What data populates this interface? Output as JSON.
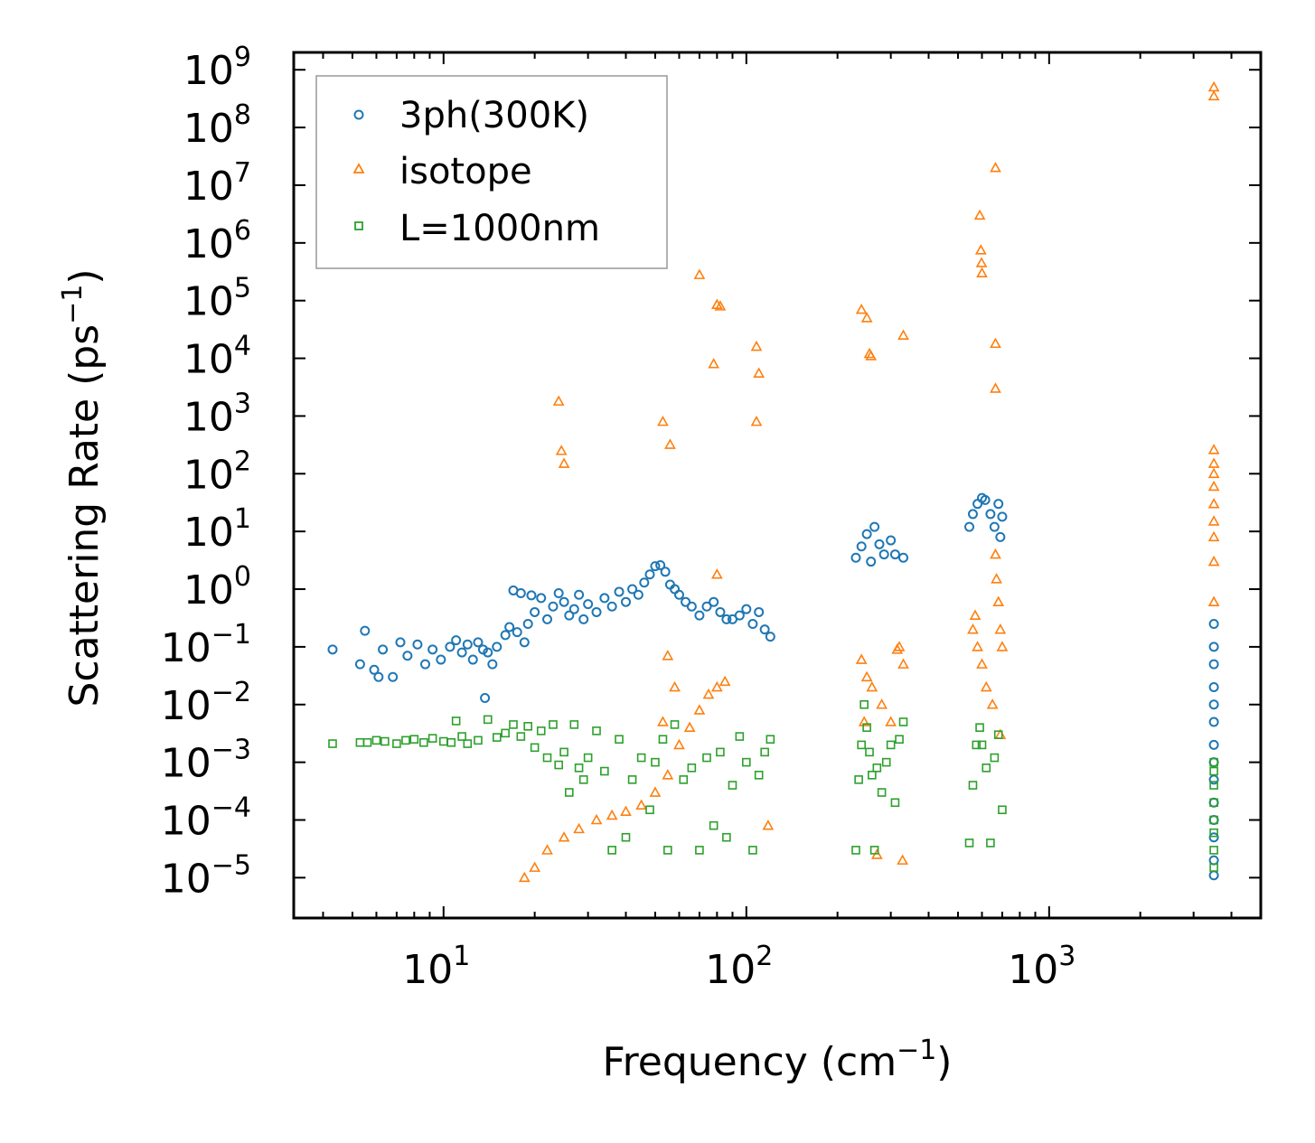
{
  "chart_data": {
    "type": "scatter",
    "xlabel": "Frequency",
    "xlabel_unit": "(cm",
    "xlabel_sup": "−1",
    "xlabel_close": ")",
    "ylabel": "Scattering Rate",
    "ylabel_unit": "(ps",
    "ylabel_sup": "−1",
    "ylabel_close": ")",
    "x_scale": "log",
    "y_scale": "log",
    "xlim": [
      3.2,
      5000
    ],
    "ylim": [
      2e-06,
      2000000000.0
    ],
    "x_ticks": [
      {
        "value": 10,
        "base": "10",
        "exp": "1"
      },
      {
        "value": 100,
        "base": "10",
        "exp": "2"
      },
      {
        "value": 1000,
        "base": "10",
        "exp": "3"
      }
    ],
    "y_ticks": [
      {
        "value": 1e-05,
        "base": "10",
        "exp": "−5"
      },
      {
        "value": 0.0001,
        "base": "10",
        "exp": "−4"
      },
      {
        "value": 0.001,
        "base": "10",
        "exp": "−3"
      },
      {
        "value": 0.01,
        "base": "10",
        "exp": "−2"
      },
      {
        "value": 0.1,
        "base": "10",
        "exp": "−1"
      },
      {
        "value": 1,
        "base": "10",
        "exp": "0"
      },
      {
        "value": 10,
        "base": "10",
        "exp": "1"
      },
      {
        "value": 100,
        "base": "10",
        "exp": "2"
      },
      {
        "value": 1000,
        "base": "10",
        "exp": "3"
      },
      {
        "value": 10000,
        "base": "10",
        "exp": "4"
      },
      {
        "value": 100000,
        "base": "10",
        "exp": "5"
      },
      {
        "value": 1000000,
        "base": "10",
        "exp": "6"
      },
      {
        "value": 10000000,
        "base": "10",
        "exp": "7"
      },
      {
        "value": 100000000,
        "base": "10",
        "exp": "8"
      },
      {
        "value": 1000000000,
        "base": "10",
        "exp": "9"
      }
    ],
    "legend_position": "top-left",
    "series": [
      {
        "name": "3ph(300K)",
        "marker": "circle",
        "color": "#1f77b4",
        "points": [
          [
            4.3,
            0.09
          ],
          [
            5.3,
            0.05
          ],
          [
            5.5,
            0.19
          ],
          [
            5.9,
            0.04
          ],
          [
            6.1,
            0.03
          ],
          [
            6.3,
            0.09
          ],
          [
            6.8,
            0.03
          ],
          [
            7.2,
            0.12
          ],
          [
            7.6,
            0.07
          ],
          [
            8.2,
            0.11
          ],
          [
            8.7,
            0.05
          ],
          [
            9.2,
            0.09
          ],
          [
            9.8,
            0.06
          ],
          [
            10.5,
            0.1
          ],
          [
            11,
            0.13
          ],
          [
            11.5,
            0.08
          ],
          [
            12,
            0.11
          ],
          [
            12.5,
            0.06
          ],
          [
            13,
            0.12
          ],
          [
            13.5,
            0.09
          ],
          [
            14,
            0.08
          ],
          [
            14.5,
            0.05
          ],
          [
            15,
            0.1
          ],
          [
            13.7,
            0.013
          ],
          [
            16,
            0.16
          ],
          [
            16.5,
            0.22
          ],
          [
            17,
            0.95
          ],
          [
            17.5,
            0.18
          ],
          [
            18,
            0.85
          ],
          [
            18.5,
            0.12
          ],
          [
            19,
            0.25
          ],
          [
            19.5,
            0.78
          ],
          [
            20,
            0.4
          ],
          [
            21,
            0.7
          ],
          [
            22,
            0.3
          ],
          [
            23,
            0.5
          ],
          [
            24,
            0.85
          ],
          [
            25,
            0.6
          ],
          [
            26,
            0.35
          ],
          [
            27,
            0.45
          ],
          [
            28,
            0.8
          ],
          [
            29,
            0.3
          ],
          [
            30,
            0.55
          ],
          [
            32,
            0.4
          ],
          [
            34,
            0.7
          ],
          [
            36,
            0.5
          ],
          [
            38,
            0.9
          ],
          [
            40,
            0.6
          ],
          [
            42,
            1.0
          ],
          [
            44,
            0.8
          ],
          [
            46,
            1.3
          ],
          [
            48,
            1.8
          ],
          [
            50,
            2.5
          ],
          [
            52,
            2.6
          ],
          [
            54,
            2.0
          ],
          [
            56,
            1.2
          ],
          [
            58,
            1.0
          ],
          [
            60,
            0.8
          ],
          [
            63,
            0.6
          ],
          [
            66,
            0.5
          ],
          [
            70,
            0.35
          ],
          [
            74,
            0.5
          ],
          [
            78,
            0.6
          ],
          [
            82,
            0.4
          ],
          [
            86,
            0.3
          ],
          [
            90,
            0.3
          ],
          [
            95,
            0.35
          ],
          [
            100,
            0.45
          ],
          [
            105,
            0.25
          ],
          [
            110,
            0.4
          ],
          [
            115,
            0.2
          ],
          [
            120,
            0.15
          ],
          [
            230,
            3.5
          ],
          [
            240,
            5.5
          ],
          [
            250,
            9.0
          ],
          [
            258,
            3.0
          ],
          [
            265,
            12.0
          ],
          [
            275,
            6.0
          ],
          [
            285,
            4.0
          ],
          [
            300,
            7.0
          ],
          [
            310,
            4.0
          ],
          [
            330,
            3.5
          ],
          [
            545,
            12.0
          ],
          [
            560,
            20.0
          ],
          [
            580,
            30.0
          ],
          [
            600,
            38.0
          ],
          [
            615,
            35.0
          ],
          [
            640,
            20.0
          ],
          [
            660,
            12.0
          ],
          [
            680,
            30.0
          ],
          [
            690,
            8.0
          ],
          [
            700,
            18.0
          ],
          [
            3500,
            0.25
          ],
          [
            3500,
            0.1
          ],
          [
            3500,
            0.05
          ],
          [
            3500,
            0.02
          ],
          [
            3500,
            0.01
          ],
          [
            3500,
            0.005
          ],
          [
            3500,
            0.002
          ],
          [
            3500,
            0.001
          ],
          [
            3500,
            0.0005
          ],
          [
            3500,
            0.0002
          ],
          [
            3500,
            0.0001
          ],
          [
            3500,
            5e-05
          ],
          [
            3500,
            2e-05
          ],
          [
            3500,
            1.1e-05
          ]
        ]
      },
      {
        "name": "isotope",
        "marker": "triangle",
        "color": "#ff7f0e",
        "points": [
          [
            24,
            1800
          ],
          [
            24.5,
            250
          ],
          [
            25,
            150
          ],
          [
            53,
            800
          ],
          [
            55,
            0.07
          ],
          [
            56,
            320
          ],
          [
            58,
            0.02
          ],
          [
            53,
            0.005
          ],
          [
            70,
            280000
          ],
          [
            78,
            8000
          ],
          [
            80,
            85000
          ],
          [
            82,
            80000
          ],
          [
            80,
            1.8
          ],
          [
            108,
            16000
          ],
          [
            110,
            5500
          ],
          [
            108,
            800
          ],
          [
            118,
            8e-05
          ],
          [
            18.5,
            1e-05
          ],
          [
            20,
            1.5e-05
          ],
          [
            22,
            3e-05
          ],
          [
            25,
            5e-05
          ],
          [
            28,
            7e-05
          ],
          [
            32,
            0.0001
          ],
          [
            36,
            0.00012
          ],
          [
            40,
            0.00014
          ],
          [
            45,
            0.00018
          ],
          [
            50,
            0.0003
          ],
          [
            55,
            0.0006
          ],
          [
            60,
            0.002
          ],
          [
            65,
            0.004
          ],
          [
            70,
            0.008
          ],
          [
            75,
            0.015
          ],
          [
            80,
            0.02
          ],
          [
            85,
            0.025
          ],
          [
            240,
            70000
          ],
          [
            250,
            50000
          ],
          [
            255,
            12000
          ],
          [
            258,
            11000
          ],
          [
            330,
            25000
          ],
          [
            328,
            2e-05
          ],
          [
            270,
            2.5e-05
          ],
          [
            240,
            0.06
          ],
          [
            250,
            0.03
          ],
          [
            260,
            0.02
          ],
          [
            280,
            0.01
          ],
          [
            300,
            0.005
          ],
          [
            315,
            0.09
          ],
          [
            320,
            0.1
          ],
          [
            330,
            0.05
          ],
          [
            245,
            0.005
          ],
          [
            590,
            3000000
          ],
          [
            595,
            750000
          ],
          [
            598,
            450000
          ],
          [
            600,
            300000
          ],
          [
            665,
            20000000
          ],
          [
            665,
            18000
          ],
          [
            665,
            3000
          ],
          [
            560,
            0.2
          ],
          [
            570,
            0.35
          ],
          [
            580,
            0.1
          ],
          [
            600,
            0.05
          ],
          [
            620,
            0.02
          ],
          [
            650,
            0.01
          ],
          [
            665,
            4.0
          ],
          [
            670,
            1.5
          ],
          [
            680,
            0.6
          ],
          [
            690,
            0.2
          ],
          [
            700,
            0.1
          ],
          [
            690,
            0.003
          ],
          [
            3500,
            500000000
          ],
          [
            3500,
            350000000
          ],
          [
            3500,
            260
          ],
          [
            3500,
            150
          ],
          [
            3500,
            100
          ],
          [
            3500,
            60
          ],
          [
            3500,
            30
          ],
          [
            3500,
            15
          ],
          [
            3500,
            8
          ],
          [
            3500,
            3
          ],
          [
            3500,
            0.6
          ]
        ]
      },
      {
        "name": "L=1000nm",
        "marker": "square",
        "color": "#2ca02c",
        "points": [
          [
            4.3,
            0.0021
          ],
          [
            5.3,
            0.0022
          ],
          [
            5.6,
            0.0022
          ],
          [
            6,
            0.0024
          ],
          [
            6.4,
            0.0023
          ],
          [
            7,
            0.0021
          ],
          [
            7.5,
            0.0024
          ],
          [
            8,
            0.0025
          ],
          [
            8.6,
            0.0022
          ],
          [
            9.2,
            0.0026
          ],
          [
            10,
            0.0023
          ],
          [
            10.6,
            0.0022
          ],
          [
            11,
            0.0052
          ],
          [
            11.5,
            0.0028
          ],
          [
            12,
            0.0021
          ],
          [
            13,
            0.0024
          ],
          [
            14,
            0.0055
          ],
          [
            15,
            0.0027
          ],
          [
            16,
            0.0032
          ],
          [
            17,
            0.0045
          ],
          [
            18,
            0.0028
          ],
          [
            19,
            0.0042
          ],
          [
            20,
            0.0018
          ],
          [
            21,
            0.0035
          ],
          [
            22,
            0.0012
          ],
          [
            23,
            0.0045
          ],
          [
            24,
            0.0009
          ],
          [
            25,
            0.0015
          ],
          [
            26,
            0.0003
          ],
          [
            27,
            0.0045
          ],
          [
            28,
            0.0008
          ],
          [
            29,
            0.0005
          ],
          [
            30,
            0.0012
          ],
          [
            32,
            0.0035
          ],
          [
            34,
            0.0007
          ],
          [
            36,
            3e-05
          ],
          [
            38,
            0.0025
          ],
          [
            40,
            5e-05
          ],
          [
            42,
            0.0005
          ],
          [
            45,
            0.0012
          ],
          [
            48,
            0.00015
          ],
          [
            50,
            0.001
          ],
          [
            53,
            0.0025
          ],
          [
            55,
            3e-05
          ],
          [
            58,
            0.0045
          ],
          [
            62,
            0.0005
          ],
          [
            66,
            0.0008
          ],
          [
            70,
            3e-05
          ],
          [
            74,
            0.0012
          ],
          [
            78,
            8e-05
          ],
          [
            82,
            0.0015
          ],
          [
            86,
            5e-05
          ],
          [
            90,
            0.0004
          ],
          [
            95,
            0.0028
          ],
          [
            100,
            0.001
          ],
          [
            105,
            3e-05
          ],
          [
            110,
            0.0006
          ],
          [
            115,
            0.0015
          ],
          [
            120,
            0.0025
          ],
          [
            230,
            3e-05
          ],
          [
            235,
            0.0005
          ],
          [
            240,
            0.002
          ],
          [
            245,
            0.01
          ],
          [
            250,
            0.004
          ],
          [
            255,
            0.0015
          ],
          [
            260,
            0.0006
          ],
          [
            265,
            3e-05
          ],
          [
            270,
            0.0008
          ],
          [
            280,
            0.0003
          ],
          [
            290,
            0.001
          ],
          [
            300,
            0.002
          ],
          [
            310,
            0.0002
          ],
          [
            320,
            0.0025
          ],
          [
            330,
            0.005
          ],
          [
            545,
            4e-05
          ],
          [
            560,
            0.0004
          ],
          [
            575,
            0.002
          ],
          [
            590,
            0.004
          ],
          [
            600,
            0.002
          ],
          [
            620,
            0.0008
          ],
          [
            640,
            4e-05
          ],
          [
            660,
            0.0012
          ],
          [
            680,
            0.003
          ],
          [
            700,
            0.00015
          ],
          [
            3500,
            0.001
          ],
          [
            3500,
            0.0007
          ],
          [
            3500,
            0.0004
          ],
          [
            3500,
            0.0002
          ],
          [
            3500,
            0.0001
          ],
          [
            3500,
            6e-05
          ],
          [
            3500,
            3e-05
          ],
          [
            3500,
            1.5e-05
          ]
        ]
      }
    ]
  }
}
